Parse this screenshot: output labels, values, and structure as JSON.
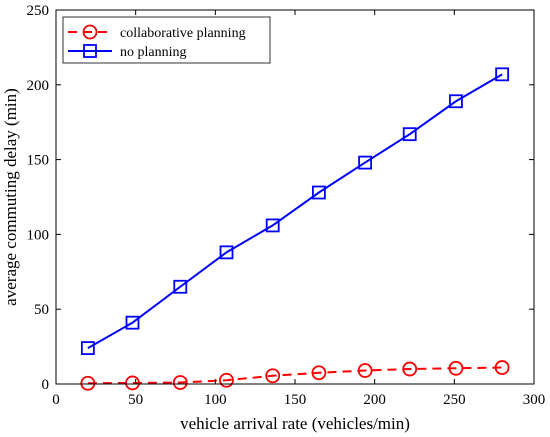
{
  "chart_data": {
    "type": "line",
    "title": "",
    "xlabel": "vehicle arrival rate (vehicles/min)",
    "ylabel": "average commuting delay (min)",
    "xlim": [
      0,
      300
    ],
    "ylim": [
      0,
      250
    ],
    "xticks": [
      0,
      50,
      100,
      150,
      200,
      250,
      300
    ],
    "yticks": [
      0,
      50,
      100,
      150,
      200,
      250
    ],
    "grid": false,
    "legend_position": "top-left",
    "series": [
      {
        "name": "collaborative planning",
        "color": "#ff0000",
        "line_style": "dashed",
        "marker": "circle",
        "x": [
          20,
          48,
          78,
          107,
          136,
          165,
          194,
          222,
          251,
          280
        ],
        "y": [
          0.5,
          0.7,
          1.0,
          2.5,
          5.5,
          7.5,
          9,
          10,
          10.5,
          11
        ]
      },
      {
        "name": "no planning",
        "color": "#0000ff",
        "line_style": "solid",
        "marker": "square",
        "x": [
          20,
          48,
          78,
          107,
          136,
          165,
          194,
          222,
          251,
          280
        ],
        "y": [
          24,
          41,
          65,
          88,
          106,
          128,
          148,
          167,
          189,
          207
        ]
      }
    ]
  }
}
